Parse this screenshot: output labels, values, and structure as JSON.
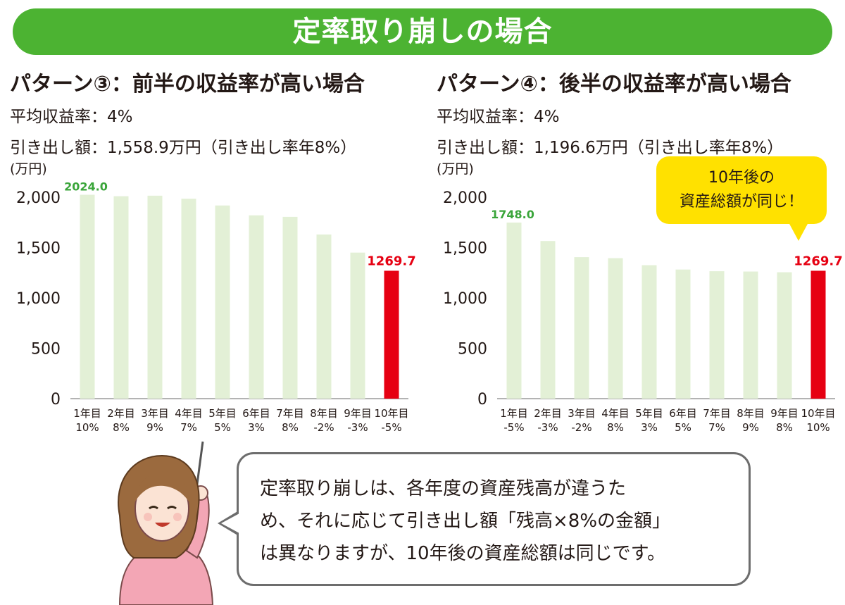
{
  "banner": {
    "title": "定率取り崩しの場合"
  },
  "panels": [
    {
      "title": "パターン③：前半の収益率が高い場合",
      "line1": "平均収益率：4%",
      "line2": "引き出し額：1,558.9万円（引き出し率年8%）"
    },
    {
      "title": "パターン④：後半の収益率が高い場合",
      "line1": "平均収益率：4%",
      "line2": "引き出し額：1,196.6万円（引き出し率年8%）"
    }
  ],
  "callout": {
    "line1": "10年後の",
    "line2": "資産総額が同じ！"
  },
  "speech": {
    "line1": "定率取り崩しは、各年度の資産残高が違うた",
    "line2": "め、それに応じて引き出し額「残高×8%の金額」",
    "line3": "は異なりますが、10年後の資産総額は同じです。"
  },
  "colors": {
    "banner": "#4cb332",
    "bar": "#e3f0d6",
    "highlight": "#e60012",
    "label_green": "#3aa53a",
    "callout": "#ffe100"
  },
  "chart_data": [
    {
      "type": "bar",
      "ylabel": "(万円)",
      "ylim": [
        0,
        2000
      ],
      "yticks": [
        0,
        500,
        1000,
        1500,
        2000
      ],
      "ytick_labels": [
        "0",
        "500",
        "1,000",
        "1,500",
        "2,000"
      ],
      "categories": [
        "1年目",
        "2年目",
        "3年目",
        "4年目",
        "5年目",
        "6年目",
        "7年目",
        "8年目",
        "9年目",
        "10年目"
      ],
      "returns": [
        "10%",
        "8%",
        "9%",
        "7%",
        "5%",
        "3%",
        "8%",
        "-2%",
        "-3%",
        "-5%"
      ],
      "values": [
        2024.0,
        2010,
        2015,
        1985,
        1918,
        1820,
        1805,
        1630,
        1450,
        1269.7
      ],
      "data_labels": {
        "first": "2024.0",
        "last": "1269.7"
      }
    },
    {
      "type": "bar",
      "ylabel": "(万円)",
      "ylim": [
        0,
        2000
      ],
      "yticks": [
        0,
        500,
        1000,
        1500,
        2000
      ],
      "ytick_labels": [
        "0",
        "500",
        "1,000",
        "1,500",
        "2,000"
      ],
      "categories": [
        "1年目",
        "2年目",
        "3年目",
        "4年目",
        "5年目",
        "6年目",
        "7年目",
        "8年目",
        "9年目",
        "10年目"
      ],
      "returns": [
        "-5%",
        "-3%",
        "-2%",
        "8%",
        "3%",
        "5%",
        "7%",
        "9%",
        "8%",
        "10%"
      ],
      "values": [
        1748.0,
        1565,
        1405,
        1395,
        1325,
        1282,
        1265,
        1262,
        1255,
        1269.7
      ],
      "data_labels": {
        "first": "1748.0",
        "last": "1269.7"
      }
    }
  ]
}
